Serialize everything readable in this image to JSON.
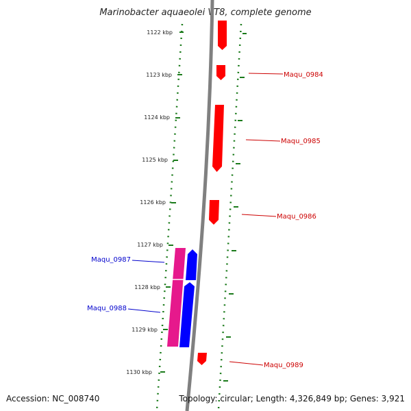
{
  "title": "Marinobacter aquaeolei VT8, complete genome",
  "footer": {
    "accession": "Accession: NC_008740",
    "summary": "Topology: circular; Length: 4,326,849 bp; Genes: 3,921"
  },
  "colors": {
    "backbone": "#808080",
    "forward_gene": "#ff0000",
    "reverse_gene": "#0000ff",
    "pseudo_gene": "#e6198c",
    "tick": "#1a7a1a",
    "forward_label": "#cc0000",
    "reverse_label": "#0000cc"
  },
  "ticks": [
    {
      "label": "1122 kbp"
    },
    {
      "label": "1123 kbp"
    },
    {
      "label": "1124 kbp"
    },
    {
      "label": "1125 kbp"
    },
    {
      "label": "1126 kbp"
    },
    {
      "label": "1127 kbp"
    },
    {
      "label": "1128 kbp"
    },
    {
      "label": "1129 kbp"
    },
    {
      "label": "1130 kbp"
    }
  ],
  "genes": [
    {
      "label": "",
      "strand": "forward"
    },
    {
      "label": "Maqu_0984",
      "strand": "forward"
    },
    {
      "label": "Maqu_0985",
      "strand": "forward"
    },
    {
      "label": "Maqu_0986",
      "strand": "forward"
    },
    {
      "label": "Maqu_0987",
      "strand": "reverse"
    },
    {
      "label": "Maqu_0988",
      "strand": "reverse"
    },
    {
      "label": "Maqu_0989",
      "strand": "forward"
    }
  ]
}
